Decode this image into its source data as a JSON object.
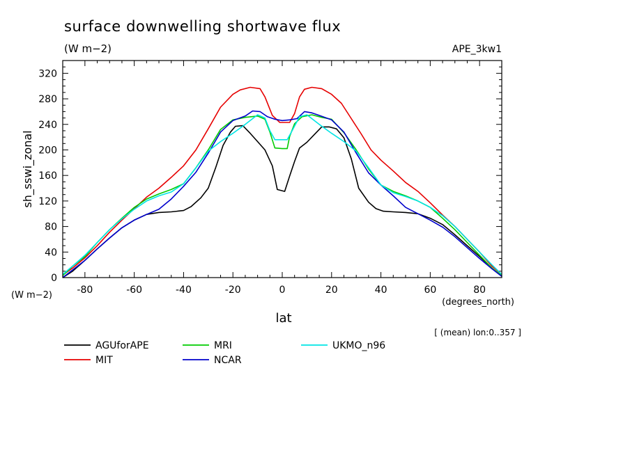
{
  "chart_data": {
    "type": "line",
    "title": "surface downwelling shortwave flux",
    "units_label": "(W m−2)",
    "run_label": "APE_3kw1",
    "ylabel": "sh_sswi_zonal",
    "yunits": "(W m−2)",
    "xlabel": "lat",
    "xunits": "(degrees_north)",
    "footnote": "[ (mean) lon:0..357 ]",
    "xlim": [
      -89,
      89
    ],
    "ylim": [
      0,
      340
    ],
    "xticks": [
      -80,
      -60,
      -40,
      -20,
      0,
      20,
      40,
      60,
      80
    ],
    "yticks": [
      0,
      40,
      80,
      120,
      160,
      200,
      240,
      280,
      320
    ],
    "legend": "bottom",
    "series": [
      {
        "name": "AGUforAPE",
        "color": "#000000",
        "points": [
          [
            -89,
            0
          ],
          [
            -85,
            10
          ],
          [
            -80,
            27
          ],
          [
            -75,
            45
          ],
          [
            -70,
            62
          ],
          [
            -65,
            78
          ],
          [
            -60,
            90
          ],
          [
            -55,
            99
          ],
          [
            -50,
            102
          ],
          [
            -45,
            103
          ],
          [
            -40,
            105
          ],
          [
            -37,
            111
          ],
          [
            -33,
            125
          ],
          [
            -30,
            140
          ],
          [
            -27,
            172
          ],
          [
            -24,
            207
          ],
          [
            -21,
            228
          ],
          [
            -19,
            237
          ],
          [
            -16,
            238
          ],
          [
            -13,
            226
          ],
          [
            -10,
            213
          ],
          [
            -7,
            200
          ],
          [
            -4,
            175
          ],
          [
            -2,
            138
          ],
          [
            1,
            135
          ],
          [
            3,
            159
          ],
          [
            5,
            182
          ],
          [
            7,
            203
          ],
          [
            10,
            212
          ],
          [
            13,
            224
          ],
          [
            16,
            236
          ],
          [
            19,
            236
          ],
          [
            22,
            233
          ],
          [
            25,
            219
          ],
          [
            28,
            186
          ],
          [
            31,
            140
          ],
          [
            35,
            118
          ],
          [
            38,
            108
          ],
          [
            41,
            104
          ],
          [
            45,
            103
          ],
          [
            50,
            102
          ],
          [
            55,
            100
          ],
          [
            60,
            93
          ],
          [
            65,
            83
          ],
          [
            70,
            67
          ],
          [
            75,
            50
          ],
          [
            80,
            33
          ],
          [
            85,
            15
          ],
          [
            89,
            2
          ]
        ]
      },
      {
        "name": "MIT",
        "color": "#e60000",
        "points": [
          [
            -89,
            4
          ],
          [
            -85,
            15
          ],
          [
            -80,
            31
          ],
          [
            -75,
            50
          ],
          [
            -70,
            71
          ],
          [
            -65,
            90
          ],
          [
            -60,
            108
          ],
          [
            -55,
            126
          ],
          [
            -50,
            140
          ],
          [
            -45,
            157
          ],
          [
            -40,
            175
          ],
          [
            -35,
            200
          ],
          [
            -30,
            233
          ],
          [
            -25,
            267
          ],
          [
            -20,
            287
          ],
          [
            -17,
            294
          ],
          [
            -13,
            298
          ],
          [
            -9,
            296
          ],
          [
            -7,
            283
          ],
          [
            -4,
            254
          ],
          [
            -1,
            243
          ],
          [
            1,
            243
          ],
          [
            3,
            243
          ],
          [
            5,
            257
          ],
          [
            7,
            283
          ],
          [
            9,
            295
          ],
          [
            12,
            298
          ],
          [
            16,
            296
          ],
          [
            20,
            287
          ],
          [
            24,
            273
          ],
          [
            28,
            249
          ],
          [
            32,
            225
          ],
          [
            36,
            200
          ],
          [
            40,
            184
          ],
          [
            45,
            167
          ],
          [
            50,
            149
          ],
          [
            55,
            135
          ],
          [
            60,
            117
          ],
          [
            65,
            98
          ],
          [
            70,
            80
          ],
          [
            75,
            60
          ],
          [
            80,
            40
          ],
          [
            85,
            18
          ],
          [
            89,
            5
          ]
        ]
      },
      {
        "name": "MRI",
        "color": "#00cc00",
        "points": [
          [
            -89,
            3
          ],
          [
            -85,
            18
          ],
          [
            -80,
            33
          ],
          [
            -75,
            55
          ],
          [
            -70,
            75
          ],
          [
            -65,
            93
          ],
          [
            -60,
            110
          ],
          [
            -55,
            123
          ],
          [
            -50,
            131
          ],
          [
            -45,
            138
          ],
          [
            -40,
            147
          ],
          [
            -35,
            172
          ],
          [
            -30,
            200
          ],
          [
            -25,
            232
          ],
          [
            -20,
            247
          ],
          [
            -15,
            251
          ],
          [
            -10,
            253
          ],
          [
            -7,
            248
          ],
          [
            -5,
            228
          ],
          [
            -3,
            203
          ],
          [
            0,
            202
          ],
          [
            2,
            202
          ],
          [
            3,
            221
          ],
          [
            5,
            241
          ],
          [
            8,
            252
          ],
          [
            12,
            255
          ],
          [
            16,
            251
          ],
          [
            20,
            248
          ],
          [
            25,
            227
          ],
          [
            30,
            200
          ],
          [
            35,
            170
          ],
          [
            40,
            145
          ],
          [
            45,
            135
          ],
          [
            50,
            128
          ],
          [
            55,
            120
          ],
          [
            60,
            110
          ],
          [
            65,
            93
          ],
          [
            70,
            75
          ],
          [
            75,
            55
          ],
          [
            80,
            35
          ],
          [
            85,
            15
          ],
          [
            89,
            3
          ]
        ]
      },
      {
        "name": "NCAR",
        "color": "#0000cc",
        "points": [
          [
            -89,
            0
          ],
          [
            -85,
            12
          ],
          [
            -80,
            27
          ],
          [
            -75,
            45
          ],
          [
            -70,
            62
          ],
          [
            -65,
            78
          ],
          [
            -60,
            90
          ],
          [
            -55,
            99
          ],
          [
            -50,
            107
          ],
          [
            -45,
            123
          ],
          [
            -40,
            143
          ],
          [
            -35,
            165
          ],
          [
            -30,
            195
          ],
          [
            -25,
            228
          ],
          [
            -20,
            246
          ],
          [
            -15,
            253
          ],
          [
            -12,
            261
          ],
          [
            -9,
            260
          ],
          [
            -6,
            252
          ],
          [
            -3,
            248
          ],
          [
            0,
            246
          ],
          [
            3,
            247
          ],
          [
            6,
            249
          ],
          [
            9,
            260
          ],
          [
            12,
            258
          ],
          [
            15,
            254
          ],
          [
            20,
            247
          ],
          [
            25,
            228
          ],
          [
            30,
            195
          ],
          [
            35,
            164
          ],
          [
            40,
            145
          ],
          [
            45,
            128
          ],
          [
            50,
            110
          ],
          [
            55,
            100
          ],
          [
            60,
            90
          ],
          [
            65,
            79
          ],
          [
            70,
            64
          ],
          [
            75,
            47
          ],
          [
            80,
            30
          ],
          [
            85,
            14
          ],
          [
            89,
            2
          ]
        ]
      },
      {
        "name": "UKMO_n96",
        "color": "#00e5e5",
        "points": [
          [
            -89,
            5
          ],
          [
            -85,
            18
          ],
          [
            -80,
            35
          ],
          [
            -75,
            55
          ],
          [
            -70,
            75
          ],
          [
            -65,
            92
          ],
          [
            -60,
            107
          ],
          [
            -55,
            120
          ],
          [
            -50,
            128
          ],
          [
            -45,
            134
          ],
          [
            -40,
            147
          ],
          [
            -35,
            172
          ],
          [
            -30,
            198
          ],
          [
            -25,
            213
          ],
          [
            -20,
            226
          ],
          [
            -15,
            240
          ],
          [
            -10,
            255
          ],
          [
            -7,
            250
          ],
          [
            -5,
            230
          ],
          [
            -3,
            216
          ],
          [
            0,
            216
          ],
          [
            2,
            216
          ],
          [
            4,
            230
          ],
          [
            7,
            252
          ],
          [
            10,
            255
          ],
          [
            15,
            240
          ],
          [
            20,
            226
          ],
          [
            25,
            213
          ],
          [
            30,
            198
          ],
          [
            35,
            172
          ],
          [
            40,
            145
          ],
          [
            45,
            133
          ],
          [
            50,
            127
          ],
          [
            55,
            120
          ],
          [
            60,
            110
          ],
          [
            65,
            97
          ],
          [
            70,
            80
          ],
          [
            75,
            60
          ],
          [
            80,
            40
          ],
          [
            85,
            20
          ],
          [
            89,
            5
          ]
        ]
      }
    ]
  }
}
